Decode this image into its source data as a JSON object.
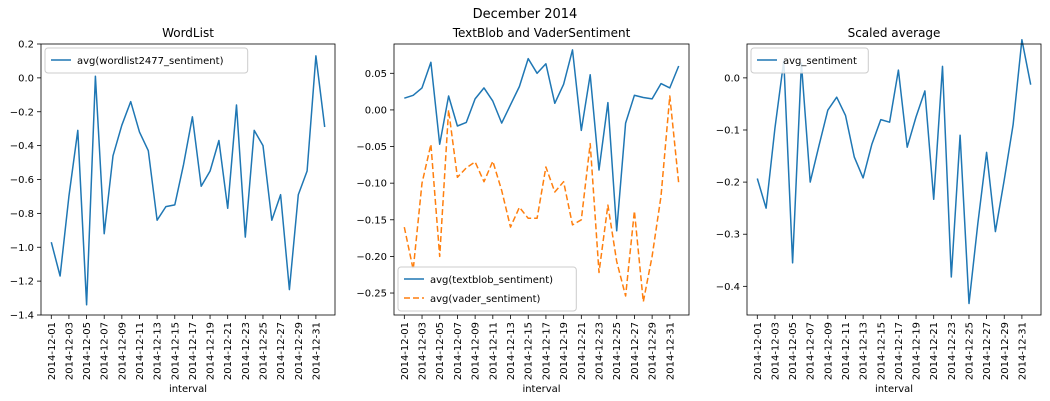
{
  "suptitle": "December 2014",
  "dates": [
    "2014-12-01",
    "2014-12-02",
    "2014-12-03",
    "2014-12-04",
    "2014-12-05",
    "2014-12-06",
    "2014-12-07",
    "2014-12-08",
    "2014-12-09",
    "2014-12-10",
    "2014-12-11",
    "2014-12-12",
    "2014-12-13",
    "2014-12-14",
    "2014-12-15",
    "2014-12-16",
    "2014-12-17",
    "2014-12-18",
    "2014-12-19",
    "2014-12-20",
    "2014-12-21",
    "2014-12-22",
    "2014-12-23",
    "2014-12-24",
    "2014-12-25",
    "2014-12-26",
    "2014-12-27",
    "2014-12-28",
    "2014-12-29",
    "2014-12-30",
    "2014-12-31",
    "2015-01-01"
  ],
  "colors": {
    "blue": "#1f77b4",
    "orange": "#ff7f0e"
  },
  "chart_data": [
    {
      "type": "line",
      "title": "WordList",
      "xlabel": "interval",
      "ylabel": "",
      "ylim": [
        -1.4,
        0.2
      ],
      "yticks": [
        0.2,
        0.0,
        -0.2,
        -0.4,
        -0.6,
        -0.8,
        -1.0,
        -1.2,
        -1.4
      ],
      "ytick_labels": [
        "0.2",
        "0.0",
        "−0.2",
        "−0.4",
        "−0.6",
        "−0.8",
        "−1.0",
        "−1.2",
        "−1.4"
      ],
      "xtick_labels": [
        "2014-12-01",
        "2014-12-03",
        "2014-12-05",
        "2014-12-07",
        "2014-12-09",
        "2014-12-11",
        "2014-12-13",
        "2014-12-15",
        "2014-12-17",
        "2014-12-19",
        "2014-12-21",
        "2014-12-23",
        "2014-12-25",
        "2014-12-27",
        "2014-12-29",
        "2014-12-31"
      ],
      "legend_loc": "upper-left",
      "series": [
        {
          "name": "avg(wordlist2477_sentiment)",
          "style": "solid",
          "values": [
            -0.97,
            -1.17,
            -0.7,
            -0.31,
            -1.34,
            0.01,
            -0.92,
            -0.46,
            -0.28,
            -0.14,
            -0.32,
            -0.43,
            -0.84,
            -0.76,
            -0.75,
            -0.51,
            -0.23,
            -0.64,
            -0.55,
            -0.37,
            -0.77,
            -0.16,
            -0.94,
            -0.31,
            -0.4,
            -0.84,
            -0.69,
            -1.25,
            -0.69,
            -0.55,
            0.13,
            -0.29
          ]
        }
      ]
    },
    {
      "type": "line",
      "title": "TextBlob and VaderSentiment",
      "xlabel": "interval",
      "ylabel": "",
      "ylim": [
        -0.28,
        0.09
      ],
      "yticks": [
        0.05,
        0.0,
        -0.05,
        -0.1,
        -0.15,
        -0.2,
        -0.25
      ],
      "ytick_labels": [
        "0.05",
        "0.00",
        "−0.05",
        "−0.10",
        "−0.15",
        "−0.20",
        "−0.25"
      ],
      "xtick_labels": [
        "2014-12-01",
        "2014-12-03",
        "2014-12-05",
        "2014-12-07",
        "2014-12-09",
        "2014-12-11",
        "2014-12-13",
        "2014-12-15",
        "2014-12-17",
        "2014-12-19",
        "2014-12-21",
        "2014-12-23",
        "2014-12-25",
        "2014-12-27",
        "2014-12-29",
        "2014-12-31"
      ],
      "legend_loc": "lower-left",
      "series": [
        {
          "name": "avg(textblob_sentiment)",
          "style": "solid",
          "values": [
            0.016,
            0.02,
            0.03,
            0.065,
            -0.047,
            0.019,
            -0.022,
            -0.017,
            0.015,
            0.03,
            0.012,
            -0.018,
            0.007,
            0.032,
            0.07,
            0.05,
            0.063,
            0.009,
            0.035,
            0.082,
            -0.028,
            0.048,
            -0.082,
            0.01,
            -0.165,
            -0.018,
            0.02,
            0.017,
            0.015,
            0.036,
            0.03,
            0.06
          ]
        },
        {
          "name": "avg(vader_sentiment)",
          "style": "dashed",
          "values": [
            -0.16,
            -0.218,
            -0.1,
            -0.047,
            -0.2,
            0.0,
            -0.092,
            -0.079,
            -0.071,
            -0.098,
            -0.07,
            -0.11,
            -0.16,
            -0.133,
            -0.148,
            -0.148,
            -0.078,
            -0.112,
            -0.098,
            -0.157,
            -0.15,
            -0.046,
            -0.222,
            -0.13,
            -0.207,
            -0.254,
            -0.138,
            -0.262,
            -0.2,
            -0.118,
            0.019,
            -0.1
          ]
        }
      ]
    },
    {
      "type": "line",
      "title": "Scaled average",
      "xlabel": "interval",
      "ylabel": "",
      "ylim": [
        -0.455,
        0.065
      ],
      "yticks": [
        0.0,
        -0.1,
        -0.2,
        -0.3,
        -0.4
      ],
      "ytick_labels": [
        "0.0",
        "−0.1",
        "−0.2",
        "−0.3",
        "−0.4"
      ],
      "xtick_labels": [
        "2014-12-01",
        "2014-12-03",
        "2014-12-05",
        "2014-12-07",
        "2014-12-09",
        "2014-12-11",
        "2014-12-13",
        "2014-12-15",
        "2014-12-17",
        "2014-12-19",
        "2014-12-21",
        "2014-12-23",
        "2014-12-25",
        "2014-12-27",
        "2014-12-29",
        "2014-12-31"
      ],
      "legend_loc": "upper-left",
      "series": [
        {
          "name": "avg_sentiment",
          "style": "solid",
          "values": [
            -0.193,
            -0.25,
            -0.097,
            0.033,
            -0.355,
            0.028,
            -0.2,
            -0.13,
            -0.062,
            -0.037,
            -0.072,
            -0.152,
            -0.192,
            -0.127,
            -0.08,
            -0.085,
            0.015,
            -0.133,
            -0.075,
            -0.025,
            -0.233,
            0.022,
            -0.382,
            -0.11,
            -0.433,
            -0.28,
            -0.143,
            -0.295,
            -0.195,
            -0.09,
            0.073,
            -0.013
          ]
        }
      ]
    }
  ]
}
